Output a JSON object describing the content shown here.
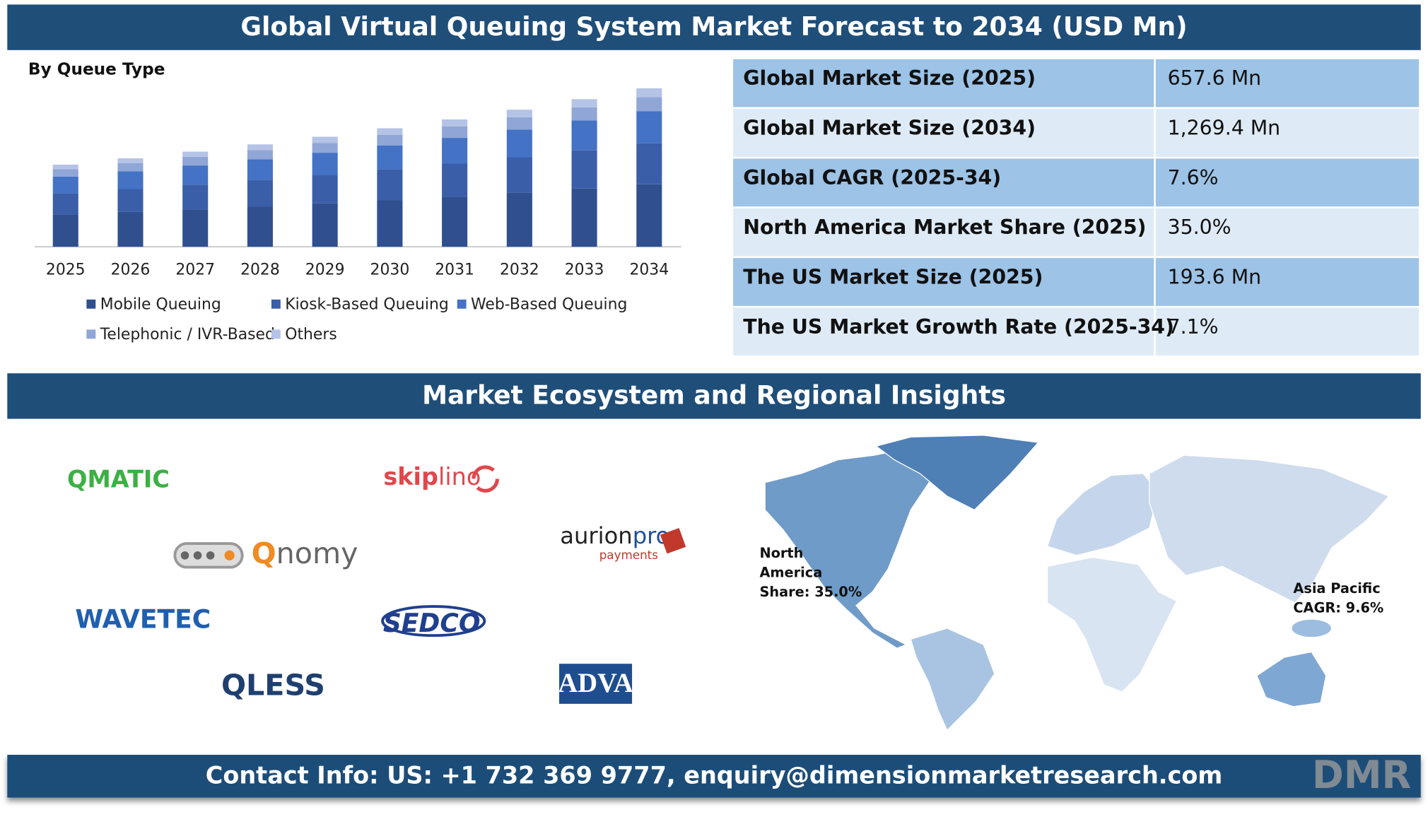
{
  "header": {
    "title": "Global Virtual Queuing System Market Forecast to 2034 (USD Mn)"
  },
  "chart_data": {
    "type": "bar",
    "stacked": true,
    "title": "By Queue Type",
    "categories": [
      "2025",
      "2026",
      "2027",
      "2028",
      "2029",
      "2030",
      "2031",
      "2032",
      "2033",
      "2034"
    ],
    "series": [
      {
        "name": "Mobile Queuing",
        "color": "#2f4f8f",
        "values": [
          259,
          279,
          300,
          323,
          347,
          374,
          402,
          433,
          466,
          500
        ]
      },
      {
        "name": "Kiosk-Based Queuing",
        "color": "#3a5ea8",
        "values": [
          170,
          183,
          197,
          212,
          228,
          246,
          264,
          284,
          306,
          329
        ]
      },
      {
        "name": "Web-Based Queuing",
        "color": "#4472c4",
        "values": [
          133,
          143,
          154,
          166,
          178,
          192,
          206,
          222,
          239,
          256
        ]
      },
      {
        "name": "Telephonic / IVR-Based",
        "color": "#8fa6d6",
        "values": [
          59,
          64,
          69,
          74,
          79,
          85,
          92,
          99,
          106,
          114
        ]
      },
      {
        "name": "Others",
        "color": "#b4c3e6",
        "values": [
          37,
          39,
          42,
          45,
          49,
          52,
          56,
          60,
          65,
          70
        ]
      }
    ]
  },
  "table": {
    "rows": [
      [
        "Global Market Size (2025)",
        "657.6 Mn"
      ],
      [
        "Global Market Size (2034)",
        "1,269.4 Mn"
      ],
      [
        "Global CAGR (2025-34)",
        "7.6%"
      ],
      [
        "North America Market Share (2025)",
        "35.0%"
      ],
      [
        "The US Market Size (2025)",
        "193.6 Mn"
      ],
      [
        "The US Market Growth Rate (2025-34)",
        "7.1%"
      ]
    ]
  },
  "section": {
    "title": "Market Ecosystem and Regional Insights"
  },
  "logos": [
    [
      "QMATIC"
    ],
    [
      "skip",
      "lino"
    ],
    [
      "Q",
      "nomy"
    ],
    [
      "aurion",
      "pro",
      "payments"
    ],
    [
      "WAVETEC"
    ],
    [
      "SEDCO"
    ],
    [
      "QLESS"
    ],
    [
      "ADVA"
    ]
  ],
  "map": {
    "annotations": [
      {
        "lines": [
          "North",
          "America",
          "Share: 35.0%"
        ]
      },
      {
        "lines": [
          "Asia Pacific",
          "CAGR: 9.6%"
        ]
      }
    ]
  },
  "footer": {
    "contact": "Contact Info: US: +1 732 369 9777, enquiry@dimensionmarketresearch.com",
    "brand": "DMR"
  }
}
